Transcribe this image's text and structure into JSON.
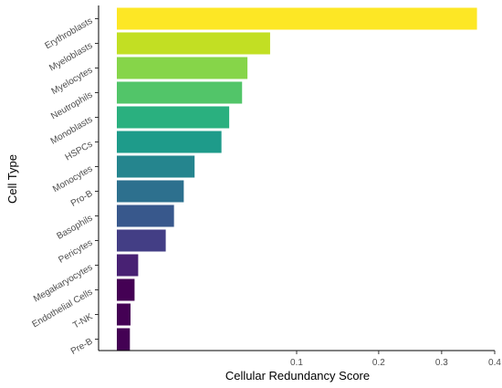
{
  "chart_data": {
    "type": "bar",
    "orientation": "horizontal",
    "xlabel": "Cellular Redundancy Score",
    "ylabel": "Cell Type",
    "x_scale": "sqrt",
    "xlim": [
      0,
      0.4
    ],
    "x_ticks": [
      0.1,
      0.2,
      0.3,
      0.4
    ],
    "x_tick_labels": [
      "0.1",
      "0.2",
      "0.3",
      "0.4"
    ],
    "grid": false,
    "legend": "none",
    "categories": [
      "Erythroblasts",
      "Myeloblasts",
      "Myelocytes",
      "Neutrophils",
      "Monoblasts",
      "HSPCs",
      "Monocytes",
      "Pro-B",
      "Basophils",
      "Pericytes",
      "Megakaryocytes",
      "Endothelial Cells",
      "T-NK",
      "Pre-B"
    ],
    "values": [
      0.365,
      0.075,
      0.0565,
      0.0525,
      0.0435,
      0.0385,
      0.0235,
      0.0185,
      0.0145,
      0.0115,
      0.004,
      0.0033,
      0.0026,
      0.0025
    ],
    "colors": [
      "#FDE725",
      "#C2DF23",
      "#86D549",
      "#52C569",
      "#2AB07F",
      "#1E9B8A",
      "#25858E",
      "#2D708E",
      "#38588C",
      "#433E85",
      "#482173",
      "#440154",
      "#440154",
      "#440154"
    ]
  }
}
